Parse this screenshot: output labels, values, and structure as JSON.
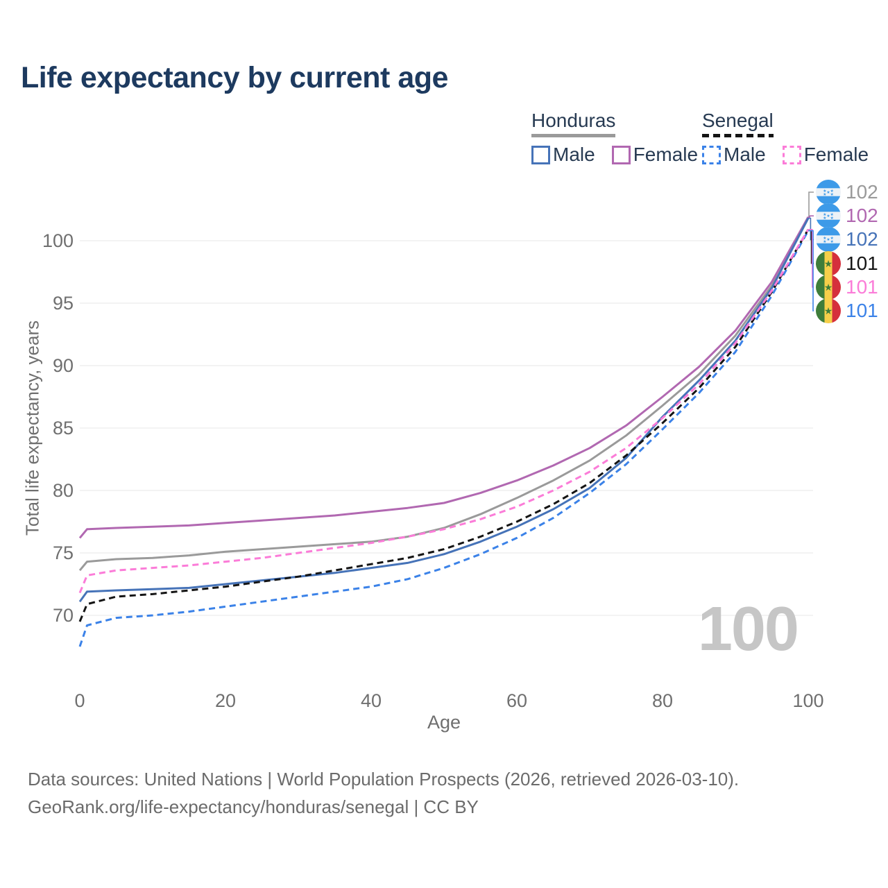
{
  "title": "Life expectancy by current age",
  "legend": {
    "groups": [
      {
        "name": "Honduras",
        "underline_color": "#9a9a9a",
        "underline_style": "solid",
        "items": [
          {
            "label": "Male",
            "color": "#4673b8",
            "dashed": false
          },
          {
            "label": "Female",
            "color": "#b168b1",
            "dashed": false
          }
        ]
      },
      {
        "name": "Senegal",
        "underline_color": "#141414",
        "underline_style": "dashed",
        "items": [
          {
            "label": "Male",
            "color": "#3b82e8",
            "dashed": true
          },
          {
            "label": "Female",
            "color": "#fb7cd8",
            "dashed": true
          }
        ]
      }
    ]
  },
  "chart_data": {
    "type": "line",
    "title": "Life expectancy by current age",
    "xlabel": "Age",
    "ylabel": "Total life expectancy, years",
    "x_ticks": [
      0,
      20,
      40,
      60,
      80,
      100
    ],
    "y_ticks": [
      100,
      95,
      90,
      85,
      80,
      75,
      70
    ],
    "xlim": [
      0,
      100
    ],
    "ylim": [
      67,
      103
    ],
    "grid": "horizontal",
    "legend_position": "top-right",
    "watermark": "100",
    "ages": [
      0,
      1,
      5,
      10,
      15,
      20,
      25,
      30,
      35,
      40,
      45,
      50,
      55,
      60,
      65,
      70,
      75,
      80,
      85,
      90,
      95,
      100
    ],
    "series": [
      {
        "name": "Honduras",
        "country": "Honduras",
        "sex": "Both",
        "color": "#9a9a9a",
        "dashed": false,
        "z": 1,
        "end_label": "102",
        "values": [
          73.6,
          74.3,
          74.5,
          74.6,
          74.8,
          75.1,
          75.3,
          75.5,
          75.7,
          75.9,
          76.3,
          77.0,
          78.1,
          79.4,
          80.8,
          82.4,
          84.4,
          86.8,
          89.3,
          92.4,
          96.4,
          101.9
        ]
      },
      {
        "name": "Honduras Female",
        "country": "Honduras",
        "sex": "Female",
        "color": "#b168b1",
        "dashed": false,
        "z": 2,
        "end_label": "102",
        "values": [
          76.2,
          76.9,
          77.0,
          77.1,
          77.2,
          77.4,
          77.6,
          77.8,
          78.0,
          78.3,
          78.6,
          79.0,
          79.8,
          80.8,
          82.0,
          83.4,
          85.2,
          87.5,
          89.9,
          92.8,
          96.7,
          101.9
        ]
      },
      {
        "name": "Honduras Male",
        "country": "Honduras",
        "sex": "Male",
        "color": "#4673b8",
        "dashed": false,
        "z": 3,
        "end_label": "102",
        "values": [
          71.1,
          71.9,
          72.0,
          72.1,
          72.2,
          72.5,
          72.8,
          73.1,
          73.4,
          73.8,
          74.2,
          74.9,
          75.9,
          77.1,
          78.5,
          80.2,
          82.6,
          85.9,
          88.8,
          92.0,
          96.2,
          101.8
        ]
      },
      {
        "name": "Senegal Male",
        "country": "Senegal",
        "sex": "Male",
        "color": "#3b82e8",
        "dashed": true,
        "z": 4,
        "end_label": "101",
        "values": [
          67.5,
          69.2,
          69.8,
          70.0,
          70.3,
          70.7,
          71.1,
          71.5,
          71.9,
          72.3,
          72.9,
          73.8,
          74.9,
          76.2,
          77.8,
          79.8,
          82.1,
          84.9,
          87.8,
          91.1,
          95.6,
          100.8
        ]
      },
      {
        "name": "Senegal",
        "country": "Senegal",
        "sex": "Both",
        "color": "#141414",
        "dashed": true,
        "z": 5,
        "end_label": "101",
        "values": [
          69.5,
          70.9,
          71.5,
          71.7,
          72.0,
          72.3,
          72.7,
          73.1,
          73.6,
          74.1,
          74.6,
          75.3,
          76.3,
          77.5,
          78.9,
          80.6,
          82.8,
          85.4,
          88.2,
          91.5,
          95.9,
          100.9
        ]
      },
      {
        "name": "Senegal Female",
        "country": "Senegal",
        "sex": "Female",
        "color": "#fb7cd8",
        "dashed": true,
        "z": 6,
        "end_label": "101",
        "values": [
          71.8,
          73.2,
          73.6,
          73.8,
          74.0,
          74.3,
          74.6,
          75.0,
          75.4,
          75.8,
          76.3,
          76.9,
          77.7,
          78.7,
          80.0,
          81.5,
          83.4,
          85.8,
          88.5,
          91.8,
          96.0,
          100.9
        ]
      }
    ],
    "end_labels": [
      {
        "flag": "honduras",
        "value": "102",
        "color": "#9a9a9a",
        "series": "Honduras"
      },
      {
        "flag": "honduras",
        "value": "102",
        "color": "#b168b1",
        "series": "Honduras Female"
      },
      {
        "flag": "honduras",
        "value": "102",
        "color": "#4673b8",
        "series": "Honduras Male"
      },
      {
        "flag": "senegal",
        "value": "101",
        "color": "#141414",
        "series": "Senegal"
      },
      {
        "flag": "senegal",
        "value": "101",
        "color": "#fb7cd8",
        "series": "Senegal Female"
      },
      {
        "flag": "senegal",
        "value": "101",
        "color": "#3b82e8",
        "series": "Senegal Male"
      }
    ]
  },
  "footer": {
    "line1": "Data sources: United Nations | World Population Prospects (2026, retrieved 2026-03-10).",
    "line2": "GeoRank.org/life-expectancy/honduras/senegal | CC BY"
  }
}
